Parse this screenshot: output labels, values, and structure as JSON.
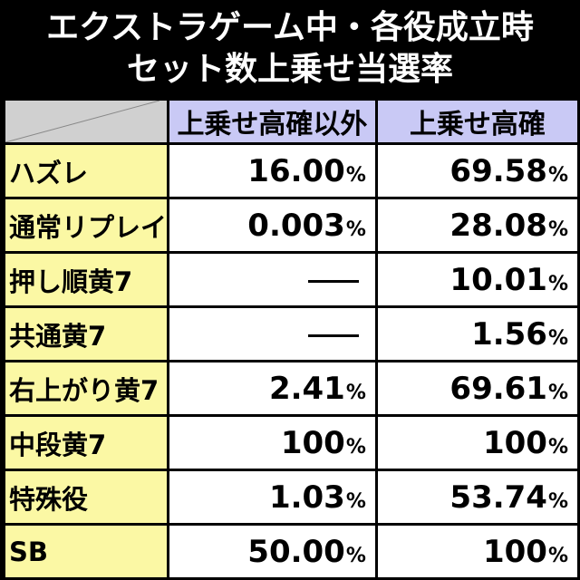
{
  "title": {
    "line1": "エクストラゲーム中・各役成立時",
    "line2": "セット数上乗せ当選率"
  },
  "table": {
    "headers": [
      "上乗せ高確以外",
      "上乗せ高確"
    ],
    "percent_sign": "%",
    "rows": [
      {
        "label": "ハズレ",
        "v1": "16.00",
        "v2": "69.58"
      },
      {
        "label": "通常リプレイ",
        "v1": "0.003",
        "v2": "28.08"
      },
      {
        "label": "押し順黄7",
        "v1": null,
        "v2": "10.01"
      },
      {
        "label": "共通黄7",
        "v1": null,
        "v2": "1.56"
      },
      {
        "label": "右上がり黄7",
        "v1": "2.41",
        "v2": "69.61"
      },
      {
        "label": "中段黄7",
        "v1": "100",
        "v2": "100"
      },
      {
        "label": "特殊役",
        "v1": "1.03",
        "v2": "53.74"
      },
      {
        "label": "SB",
        "v1": "50.00",
        "v2": "100"
      }
    ]
  },
  "colors": {
    "background": "#000000",
    "header_bg": "#c9c9f5",
    "row_label_bg": "#fbf8a4",
    "cell_bg": "#ffffff",
    "corner_bg": "#d0d0d0"
  }
}
